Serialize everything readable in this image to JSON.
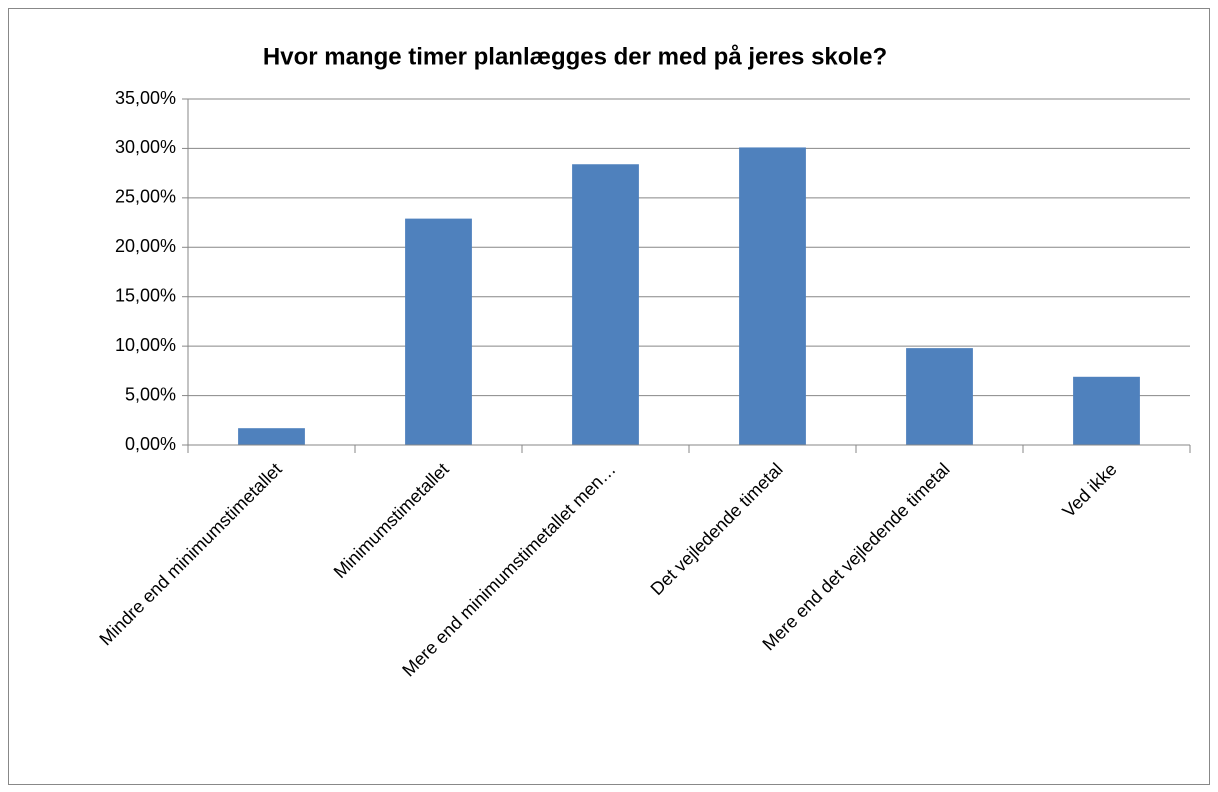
{
  "chart_data": {
    "type": "bar",
    "title": "Hvor mange timer planlægges der med på jeres skole?",
    "categories": [
      "Mindre end minimumstimetallet",
      "Minimumstimetallet",
      "Mere end minimumstimetallet men…",
      "Det vejledende timetal",
      "Mere end det vejledende timetal",
      "Ved ikke"
    ],
    "values": [
      1.7,
      22.9,
      28.4,
      30.1,
      9.8,
      6.9
    ],
    "color": "#4f81bd",
    "ylim": [
      0,
      35
    ],
    "yticks": [
      {
        "value": 0,
        "label": "0,00%"
      },
      {
        "value": 5,
        "label": "5,00%"
      },
      {
        "value": 10,
        "label": "10,00%"
      },
      {
        "value": 15,
        "label": "15,00%"
      },
      {
        "value": 20,
        "label": "20,00%"
      },
      {
        "value": 25,
        "label": "25,00%"
      },
      {
        "value": 30,
        "label": "30,00%"
      },
      {
        "value": 35,
        "label": "35,00%"
      }
    ],
    "grid": true
  }
}
